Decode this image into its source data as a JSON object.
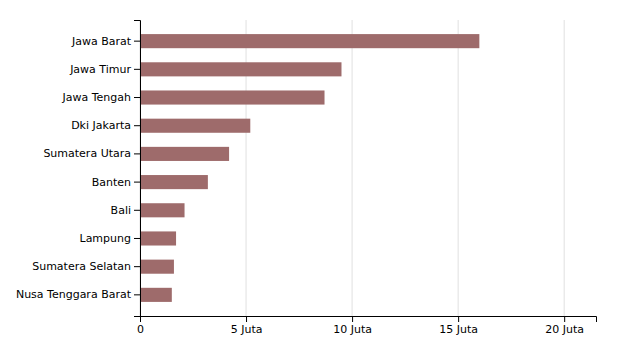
{
  "chart_data": {
    "type": "bar",
    "orientation": "horizontal",
    "categories": [
      "Nusa Tenggara Barat",
      "Sumatera Selatan",
      "Lampung",
      "Bali",
      "Banten",
      "Sumatera Utara",
      "Dki Jakarta",
      "Jawa Tengah",
      "Jawa Timur",
      "Jawa Barat"
    ],
    "values": [
      1.5,
      1.6,
      1.7,
      2.1,
      3.2,
      4.2,
      5.2,
      8.7,
      9.5,
      16.0
    ],
    "color": "#9e6b6b",
    "xlim": [
      0,
      21.5
    ],
    "xticks": [
      0,
      {
        "value": 5,
        "label": "5 Juta"
      },
      {
        "value": 10,
        "label": "10 Juta"
      },
      {
        "value": 15,
        "label": "15 Juta"
      },
      {
        "value": 20,
        "label": "20 Juta"
      }
    ],
    "grid": true
  }
}
